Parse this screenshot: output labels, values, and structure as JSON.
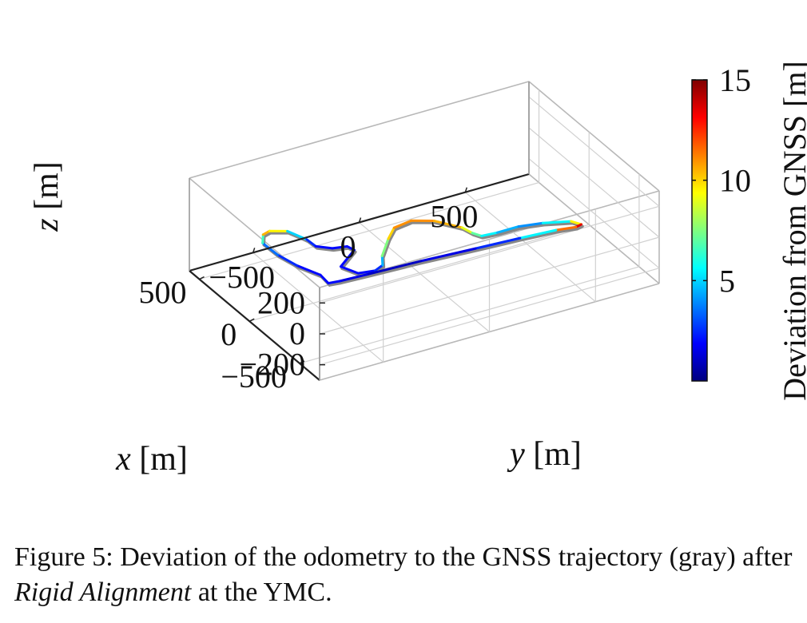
{
  "chart_data": {
    "type": "line3d",
    "title": "",
    "xlabel": "x [m]",
    "ylabel": "y [m]",
    "zlabel": "z [m]",
    "xlim": [
      -700,
      600
    ],
    "ylim": [
      -800,
      800
    ],
    "zlim": [
      -300,
      300
    ],
    "x_ticks": [
      -500,
      0,
      500
    ],
    "x_tick_labels": [
      "−500",
      "0",
      "500"
    ],
    "y_ticks": [
      -500,
      0,
      500
    ],
    "y_tick_labels": [
      "−500",
      "0",
      "500"
    ],
    "z_ticks": [
      -200,
      0,
      200
    ],
    "z_tick_labels": [
      "−200",
      "0",
      "200"
    ],
    "colorbar": {
      "label": "Deviation from GNSS [m]",
      "min": 0,
      "max": 15,
      "ticks": [
        5,
        10,
        15
      ],
      "tick_labels": [
        "5",
        "10",
        "15"
      ],
      "colormap": [
        "#00007f",
        "#0000ff",
        "#007fff",
        "#00ffff",
        "#7fff7f",
        "#ffff00",
        "#ff7f00",
        "#ff0000",
        "#7f0000"
      ]
    },
    "reference_trajectory": {
      "name": "GNSS trajectory",
      "color": "#888888"
    },
    "series": [
      {
        "name": "odometry",
        "points": [
          {
            "x": -300,
            "y": -570,
            "z": 20,
            "dev": 2
          },
          {
            "x": -200,
            "y": -560,
            "z": 15,
            "dev": 2
          },
          {
            "x": -50,
            "y": -600,
            "z": 10,
            "dev": 2
          },
          {
            "x": 100,
            "y": -620,
            "z": 5,
            "dev": 3
          },
          {
            "x": 250,
            "y": -620,
            "z": 0,
            "dev": 4
          },
          {
            "x": 330,
            "y": -580,
            "z": -5,
            "dev": 9
          },
          {
            "x": 350,
            "y": -540,
            "z": -8,
            "dev": 12
          },
          {
            "x": 300,
            "y": -480,
            "z": -5,
            "dev": 7
          },
          {
            "x": 170,
            "y": -450,
            "z": 0,
            "dev": 3
          },
          {
            "x": 80,
            "y": -450,
            "z": 5,
            "dev": 2
          },
          {
            "x": 20,
            "y": -400,
            "z": 5,
            "dev": 2
          },
          {
            "x": 0,
            "y": -340,
            "z": 5,
            "dev": 2
          },
          {
            "x": -50,
            "y": -330,
            "z": 5,
            "dev": 2
          },
          {
            "x": -170,
            "y": -450,
            "z": 10,
            "dev": 2
          },
          {
            "x": -280,
            "y": -420,
            "z": 15,
            "dev": 2
          },
          {
            "x": -300,
            "y": -350,
            "z": 15,
            "dev": 2
          },
          {
            "x": -270,
            "y": -300,
            "z": 15,
            "dev": 3
          },
          {
            "x": -180,
            "y": -260,
            "z": 10,
            "dev": 6
          },
          {
            "x": -30,
            "y": -160,
            "z": 0,
            "dev": 9
          },
          {
            "x": 60,
            "y": -90,
            "z": -5,
            "dev": 11
          },
          {
            "x": 80,
            "y": 0,
            "z": -5,
            "dev": 11
          },
          {
            "x": 20,
            "y": 80,
            "z": -5,
            "dev": 11
          },
          {
            "x": -110,
            "y": 150,
            "z": -5,
            "dev": 10
          },
          {
            "x": -190,
            "y": 160,
            "z": 0,
            "dev": 8
          },
          {
            "x": -240,
            "y": 180,
            "z": 0,
            "dev": 6
          },
          {
            "x": -250,
            "y": 250,
            "z": 0,
            "dev": 5
          },
          {
            "x": -250,
            "y": 350,
            "z": 0,
            "dev": 4
          },
          {
            "x": -280,
            "y": 450,
            "z": 0,
            "dev": 4
          },
          {
            "x": -350,
            "y": 550,
            "z": 10,
            "dev": 7
          },
          {
            "x": -410,
            "y": 570,
            "z": 15,
            "dev": 12
          },
          {
            "x": -420,
            "y": 540,
            "z": 15,
            "dev": 15
          },
          {
            "x": -390,
            "y": 460,
            "z": 10,
            "dev": 8
          },
          {
            "x": -370,
            "y": 300,
            "z": 10,
            "dev": 3
          },
          {
            "x": -350,
            "y": 100,
            "z": 10,
            "dev": 2
          },
          {
            "x": -330,
            "y": -150,
            "z": 15,
            "dev": 1
          },
          {
            "x": -320,
            "y": -400,
            "z": 20,
            "dev": 1
          },
          {
            "x": -310,
            "y": -520,
            "z": 20,
            "dev": 2
          },
          {
            "x": -300,
            "y": -570,
            "z": 20,
            "dev": 2
          }
        ]
      }
    ]
  },
  "caption": {
    "prefix": "Figure 5: Deviation of the odometry to the GNSS trajectory (gray) after ",
    "emphasis": "Rigid Alignment",
    "suffix": " at the YMC."
  }
}
